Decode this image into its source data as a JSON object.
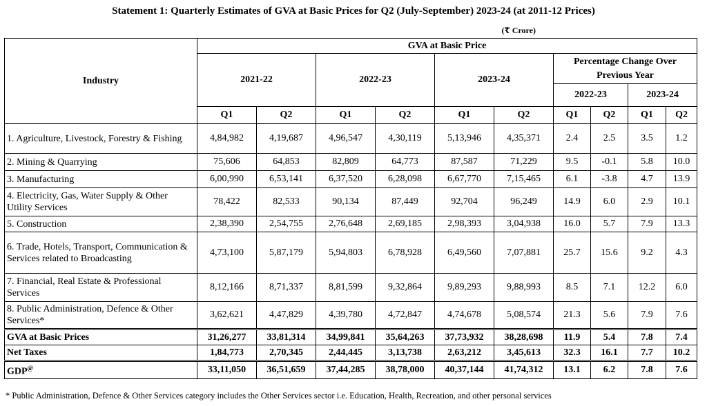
{
  "title": "Statement 1: Quarterly Estimates of GVA at Basic Prices for Q2 (July-September) 2023-24 (at 2011-12 Prices)",
  "unit": "(₹ Crore)",
  "header": {
    "industry": "Industry",
    "gva_group": "GVA at Basic Price",
    "years": [
      "2021-22",
      "2022-23",
      "2023-24"
    ],
    "pct_group": "Percentage Change Over Previous Year",
    "pct_years": [
      "2022-23",
      "2023-24"
    ],
    "quarters": [
      "Q1",
      "Q2",
      "Q1",
      "Q2",
      "Q1",
      "Q2",
      "Q1",
      "Q2",
      "Q1",
      "Q2"
    ]
  },
  "rows": [
    {
      "label": "1. Agriculture, Livestock, Forestry & Fishing",
      "values": [
        "4,84,982",
        "4,19,687",
        "4,96,547",
        "4,30,119",
        "5,13,946",
        "4,35,371",
        "2.4",
        "2.5",
        "3.5",
        "1.2"
      ]
    },
    {
      "label": "2. Mining & Quarrying",
      "values": [
        "75,606",
        "64,853",
        "82,809",
        "64,773",
        "87,587",
        "71,229",
        "9.5",
        "-0.1",
        "5.8",
        "10.0"
      ]
    },
    {
      "label": "3. Manufacturing",
      "values": [
        "6,00,990",
        "6,53,141",
        "6,37,520",
        "6,28,098",
        "6,67,770",
        "7,15,465",
        "6.1",
        "-3.8",
        "4.7",
        "13.9"
      ]
    },
    {
      "label": "4. Electricity, Gas, Water Supply & Other Utility Services",
      "values": [
        "78,422",
        "82,533",
        "90,134",
        "87,449",
        "92,704",
        "96,249",
        "14.9",
        "6.0",
        "2.9",
        "10.1"
      ]
    },
    {
      "label": "5. Construction",
      "values": [
        "2,38,390",
        "2,54,755",
        "2,76,648",
        "2,69,185",
        "2,98,393",
        "3,04,938",
        "16.0",
        "5.7",
        "7.9",
        "13.3"
      ]
    },
    {
      "label": "6. Trade, Hotels, Transport, Communication & Services related to Broadcasting",
      "values": [
        "4,73,100",
        "5,87,179",
        "5,94,803",
        "6,78,928",
        "6,49,560",
        "7,07,881",
        "25.7",
        "15.6",
        "9.2",
        "4.3"
      ]
    },
    {
      "label": "7. Financial, Real Estate & Professional Services",
      "values": [
        "8,12,166",
        "8,71,337",
        "8,81,599",
        "9,32,864",
        "9,89,293",
        "9,88,993",
        "8.5",
        "7.1",
        "12.2",
        "6.0"
      ]
    },
    {
      "label": "8. Public Administration, Defence & Other Services*",
      "values": [
        "3,62,621",
        "4,47,829",
        "4,39,780",
        "4,72,847",
        "4,74,678",
        "5,08,574",
        "21.3",
        "5.6",
        "7.9",
        "7.6"
      ]
    }
  ],
  "totals": [
    {
      "label": "GVA at Basic Prices",
      "values": [
        "31,26,277",
        "33,81,314",
        "34,99,841",
        "35,64,263",
        "37,73,932",
        "38,28,698",
        "11.9",
        "5.4",
        "7.8",
        "7.4"
      ]
    },
    {
      "label": "Net Taxes",
      "values": [
        "1,84,773",
        "2,70,345",
        "2,44,445",
        "3,13,738",
        "2,63,212",
        "3,45,613",
        "32.3",
        "16.1",
        "7.7",
        "10.2"
      ]
    },
    {
      "label": "GDP",
      "sup": "@",
      "values": [
        "33,11,050",
        "36,51,659",
        "37,44,285",
        "38,78,000",
        "40,37,144",
        "41,74,312",
        "13.1",
        "6.2",
        "7.8",
        "7.6"
      ]
    }
  ],
  "footnote": "* Public Administration, Defence & Other Services category includes the Other Services sector i.e. Education, Health, Recreation, and other personal services"
}
